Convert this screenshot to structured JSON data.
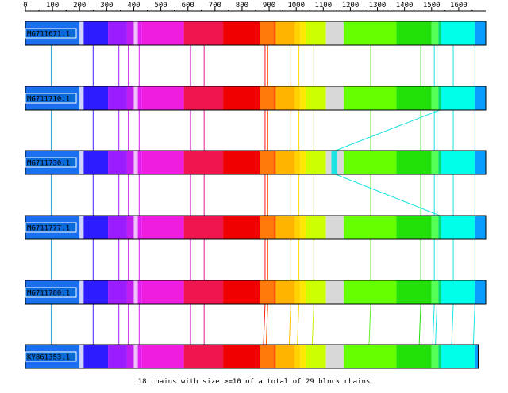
{
  "ruler": {
    "ticks": [
      {
        "value": 0,
        "label": "0"
      },
      {
        "value": 100,
        "label": "100"
      },
      {
        "value": 200,
        "label": "200"
      },
      {
        "value": 300,
        "label": "300"
      },
      {
        "value": 400,
        "label": "400"
      },
      {
        "value": 500,
        "label": "500"
      },
      {
        "value": 600,
        "label": "600"
      },
      {
        "value": 700,
        "label": "700"
      },
      {
        "value": 800,
        "label": "800"
      },
      {
        "value": 900,
        "label": "900"
      },
      {
        "value": 1000,
        "label": "1000"
      },
      {
        "value": 1100,
        "label": "1100"
      },
      {
        "value": 1200,
        "label": "1200"
      },
      {
        "value": 1300,
        "label": "1300"
      },
      {
        "value": 1400,
        "label": "1400"
      },
      {
        "value": 1500,
        "label": "1500"
      },
      {
        "value": 1600,
        "label": "1600"
      }
    ],
    "max": 1700
  },
  "colors": {
    "label_bg": "#0a6ad8",
    "label_text": "#000000",
    "link_cyan": "#19e3e3"
  },
  "tracks": [
    {
      "name": "MG711671.1",
      "length": 1700
    },
    {
      "name": "MG711710.1",
      "length": 1700
    },
    {
      "name": "MG711730.1",
      "length": 1700
    },
    {
      "name": "MG711777.1",
      "length": 1700
    },
    {
      "name": "MG711780.1",
      "length": 1700
    },
    {
      "name": "KY861353.1",
      "length": 1672
    }
  ],
  "blocks": [
    {
      "start": 0,
      "end": 200,
      "color": "#1a6ff0"
    },
    {
      "start": 200,
      "end": 215,
      "color": "#cfd3ff"
    },
    {
      "start": 215,
      "end": 305,
      "color": "#2d1cff"
    },
    {
      "start": 305,
      "end": 375,
      "color": "#9b1cff"
    },
    {
      "start": 375,
      "end": 400,
      "color": "#c01ef0"
    },
    {
      "start": 400,
      "end": 415,
      "color": "#f0c0f8"
    },
    {
      "start": 415,
      "end": 430,
      "color": "#e01cf0"
    },
    {
      "start": 430,
      "end": 585,
      "color": "#f01ce0"
    },
    {
      "start": 585,
      "end": 730,
      "color": "#f0144f"
    },
    {
      "start": 730,
      "end": 865,
      "color": "#f00000"
    },
    {
      "start": 865,
      "end": 915,
      "color": "#ff7a0a"
    },
    {
      "start": 915,
      "end": 925,
      "color": "#ff5a00"
    },
    {
      "start": 925,
      "end": 995,
      "color": "#ffb400"
    },
    {
      "start": 995,
      "end": 1015,
      "color": "#ffd400"
    },
    {
      "start": 1015,
      "end": 1035,
      "color": "#ffe800"
    },
    {
      "start": 1035,
      "end": 1110,
      "color": "#ccff00"
    },
    {
      "start": 1110,
      "end": 1175,
      "color": "#d8d8d8"
    },
    {
      "start": 1175,
      "end": 1370,
      "color": "#66ff00"
    },
    {
      "start": 1370,
      "end": 1500,
      "color": "#22e10a"
    },
    {
      "start": 1500,
      "end": 1525,
      "color": "#55ff55"
    },
    {
      "start": 1525,
      "end": 1535,
      "color": "#00e070"
    },
    {
      "start": 1535,
      "end": 1660,
      "color": "#00ffe8"
    },
    {
      "start": 1660,
      "end": 1700,
      "color": "#0a9cff"
    }
  ],
  "link_positions": [
    {
      "pos": 95,
      "color": "#2aa1d6"
    },
    {
      "pos": 250,
      "color": "#3a22ff"
    },
    {
      "pos": 345,
      "color": "#9b1cff"
    },
    {
      "pos": 380,
      "color": "#c01ef0"
    },
    {
      "pos": 420,
      "color": "#d21ef0"
    },
    {
      "pos": 610,
      "color": "#d21ed0"
    },
    {
      "pos": 660,
      "color": "#e01c90"
    },
    {
      "pos": 885,
      "color": "#f01414"
    },
    {
      "pos": 895,
      "color": "#ff5a00"
    },
    {
      "pos": 980,
      "color": "#ffc000"
    },
    {
      "pos": 1010,
      "color": "#ffd800"
    },
    {
      "pos": 1065,
      "color": "#ccee00"
    },
    {
      "pos": 1275,
      "color": "#66ee22"
    },
    {
      "pos": 1460,
      "color": "#22e10a"
    },
    {
      "pos": 1510,
      "color": "#19e3e3"
    },
    {
      "pos": 1520,
      "color": "#19e3e3"
    },
    {
      "pos": 1580,
      "color": "#19e3e3"
    },
    {
      "pos": 1660,
      "color": "#19e3e3"
    }
  ],
  "footer": {
    "text": "18 chains with size >=10 of a total of 29 block chains"
  }
}
